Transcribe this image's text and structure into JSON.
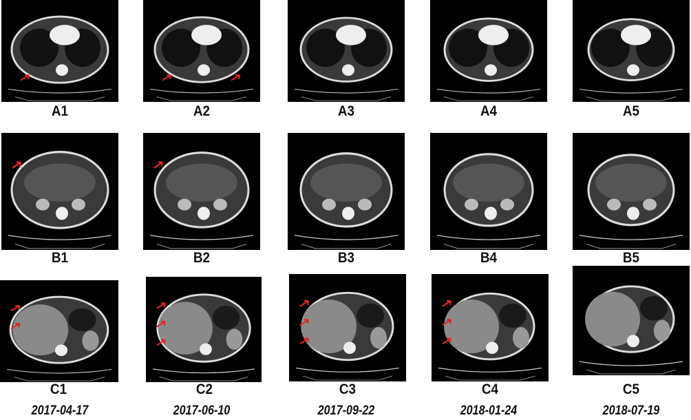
{
  "figure": {
    "rows": [
      {
        "row": "A",
        "panels": [
          {
            "label": "A1",
            "arrows": 1
          },
          {
            "label": "A2",
            "arrows": 2
          },
          {
            "label": "A3",
            "arrows": 0
          },
          {
            "label": "A4",
            "arrows": 0
          },
          {
            "label": "A5",
            "arrows": 0
          }
        ]
      },
      {
        "row": "B",
        "panels": [
          {
            "label": "B1",
            "arrows": 1
          },
          {
            "label": "B2",
            "arrows": 1
          },
          {
            "label": "B3",
            "arrows": 0
          },
          {
            "label": "B4",
            "arrows": 0
          },
          {
            "label": "B5",
            "arrows": 0
          }
        ]
      },
      {
        "row": "C",
        "panels": [
          {
            "label": "C1",
            "arrows": 2
          },
          {
            "label": "C2",
            "arrows": 3
          },
          {
            "label": "C3",
            "arrows": 3
          },
          {
            "label": "C4",
            "arrows": 3
          },
          {
            "label": "C5",
            "arrows": 0
          }
        ]
      }
    ],
    "dates": [
      "2017-04-17",
      "2017-06-10",
      "2017-09-22",
      "2018-01-24",
      "2018-07-19"
    ],
    "arrow_color": "#e0242a"
  }
}
